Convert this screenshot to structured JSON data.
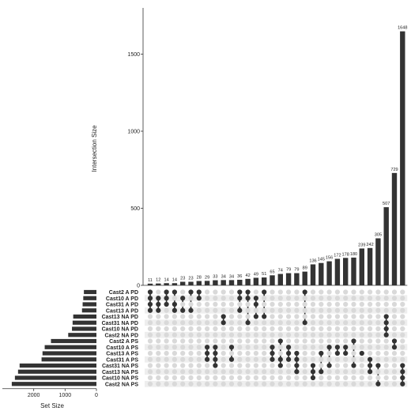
{
  "chart_data": {
    "type": "bar",
    "subtype": "upset",
    "title": "",
    "ylabel": "Intersection Size",
    "xlabel_sets": "Set Size",
    "ylim": [
      0,
      1800
    ],
    "yticks": [
      0,
      500,
      1000,
      1500
    ],
    "set_size_ticks": [
      2000,
      1000,
      0
    ],
    "set_size_max": 3000,
    "grid": false,
    "colors": {
      "bar": "#333333",
      "dot_active": "#333333",
      "dot_inactive": "#d9d9d9",
      "stripe": "#eeeeee"
    },
    "sets": [
      {
        "name": "Cast2 A PD",
        "size": 400
      },
      {
        "name": "Cast10 A PD",
        "size": 420
      },
      {
        "name": "Cast31 A PD",
        "size": 440
      },
      {
        "name": "Cast13 A PD",
        "size": 460
      },
      {
        "name": "Cast13 NA PD",
        "size": 740
      },
      {
        "name": "Cast31 NA PD",
        "size": 760
      },
      {
        "name": "Cast10 NA PD",
        "size": 780
      },
      {
        "name": "Cast2 NA PD",
        "size": 900
      },
      {
        "name": "Cast2 A PS",
        "size": 1450
      },
      {
        "name": "Cast10 A PS",
        "size": 1650
      },
      {
        "name": "Cast13 A PS",
        "size": 1720
      },
      {
        "name": "Cast31 A PS",
        "size": 1750
      },
      {
        "name": "Cast31 NA PS",
        "size": 2450
      },
      {
        "name": "Cast13 NA PS",
        "size": 2500
      },
      {
        "name": "Cast10 NA PS",
        "size": 2600
      },
      {
        "name": "Cast2 NA PS",
        "size": 2700
      }
    ],
    "intersections": [
      {
        "size": 11,
        "sets": [
          0,
          1,
          2,
          3
        ]
      },
      {
        "size": 12,
        "sets": [
          1,
          2,
          3
        ]
      },
      {
        "size": 14,
        "sets": [
          0,
          1,
          2
        ]
      },
      {
        "size": 14,
        "sets": [
          0,
          2,
          3
        ]
      },
      {
        "size": 23,
        "sets": [
          1,
          3
        ]
      },
      {
        "size": 23,
        "sets": [
          0,
          3
        ]
      },
      {
        "size": 28,
        "sets": [
          0,
          1
        ]
      },
      {
        "size": 29,
        "sets": [
          9,
          10,
          11
        ]
      },
      {
        "size": 33,
        "sets": [
          9,
          10,
          11,
          12
        ]
      },
      {
        "size": 34,
        "sets": [
          4,
          5
        ]
      },
      {
        "size": 34,
        "sets": [
          9,
          11
        ]
      },
      {
        "size": 36,
        "sets": [
          0,
          1,
          3
        ]
      },
      {
        "size": 42,
        "sets": [
          0,
          1,
          5
        ]
      },
      {
        "size": 49,
        "sets": [
          1,
          2,
          4
        ]
      },
      {
        "size": 51,
        "sets": [
          0,
          4
        ]
      },
      {
        "size": 65,
        "sets": [
          9,
          10,
          11
        ]
      },
      {
        "size": 74,
        "sets": [
          8,
          11,
          12
        ]
      },
      {
        "size": 79,
        "sets": [
          9,
          10,
          11
        ]
      },
      {
        "size": 79,
        "sets": [
          10,
          11,
          12,
          13
        ]
      },
      {
        "size": 89,
        "sets": [
          0,
          5
        ]
      },
      {
        "size": 136,
        "sets": [
          12,
          13,
          14
        ]
      },
      {
        "size": 145,
        "sets": [
          10,
          13
        ]
      },
      {
        "size": 156,
        "sets": [
          9,
          12
        ]
      },
      {
        "size": 172,
        "sets": [
          9,
          10
        ]
      },
      {
        "size": 178,
        "sets": [
          9,
          10
        ]
      },
      {
        "size": 180,
        "sets": [
          8,
          12
        ]
      },
      {
        "size": 239,
        "sets": [
          10
        ]
      },
      {
        "size": 242,
        "sets": [
          11,
          12,
          13
        ]
      },
      {
        "size": 305,
        "sets": [
          12,
          15
        ]
      },
      {
        "size": 507,
        "sets": [
          4,
          5,
          6,
          7
        ]
      },
      {
        "size": 729,
        "sets": [
          8,
          9
        ]
      },
      {
        "size": 1648,
        "sets": [
          12,
          13,
          14,
          15
        ]
      }
    ]
  }
}
